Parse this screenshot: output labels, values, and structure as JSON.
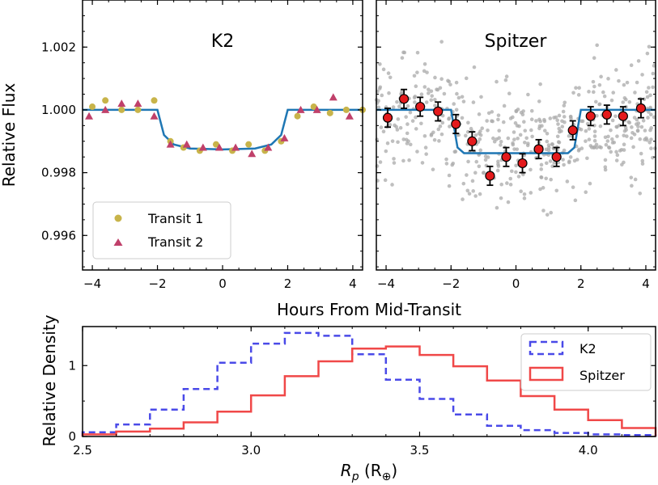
{
  "chart_data": [
    {
      "type": "scatter",
      "title": "K2",
      "xlabel": "Hours From Mid-Transit",
      "ylabel": "Relative Flux",
      "xlim": [
        -4.3,
        4.3
      ],
      "ylim": [
        0.9949,
        1.0035
      ],
      "xticks": [
        "-4",
        "-2",
        "0",
        "2",
        "4"
      ],
      "yticks": [
        "0.996",
        "0.998",
        "1.000",
        "1.002"
      ],
      "series": [
        {
          "name": "Transit 1",
          "color": "#c8b44a",
          "marker": "circle",
          "x": [
            -4.0,
            -3.6,
            -3.1,
            -2.6,
            -2.1,
            -1.6,
            -1.2,
            -0.7,
            -0.2,
            0.3,
            0.8,
            1.3,
            1.8,
            2.3,
            2.8,
            3.3,
            3.8,
            4.3
          ],
          "y": [
            1.0001,
            1.0003,
            1.0,
            1.0,
            1.0003,
            0.999,
            0.9988,
            0.9987,
            0.9989,
            0.9987,
            0.9989,
            0.9987,
            0.999,
            0.9998,
            1.0001,
            0.9999,
            1.0,
            1.0
          ]
        },
        {
          "name": "Transit 2",
          "color": "#c0406a",
          "marker": "triangle",
          "x": [
            -4.1,
            -3.6,
            -3.1,
            -2.6,
            -2.1,
            -1.6,
            -1.1,
            -0.6,
            -0.1,
            0.4,
            0.9,
            1.4,
            1.9,
            2.4,
            2.9,
            3.4,
            3.9
          ],
          "y": [
            0.9998,
            1.0,
            1.0002,
            1.0002,
            0.9998,
            0.9989,
            0.9989,
            0.9988,
            0.9988,
            0.9988,
            0.9986,
            0.9988,
            0.9991,
            1.0,
            1.0,
            1.0004,
            0.9998
          ]
        }
      ],
      "model": {
        "color": "#1f77b4",
        "x": [
          -4.3,
          -2.0,
          -1.8,
          -1.5,
          -1.0,
          0.0,
          1.0,
          1.5,
          1.8,
          2.0,
          4.3
        ],
        "y": [
          1.0,
          1.0,
          0.9992,
          0.9989,
          0.99877,
          0.99874,
          0.99877,
          0.9989,
          0.9992,
          1.0,
          1.0
        ]
      }
    },
    {
      "type": "scatter",
      "title": "Spitzer",
      "xlabel": "Hours From Mid-Transit",
      "xlim": [
        -4.3,
        4.3
      ],
      "ylim": [
        0.9949,
        1.0035
      ],
      "xticks": [
        "-4",
        "-2",
        "0",
        "2",
        "4"
      ],
      "scatter_cloud": {
        "color": "#a9a9a9",
        "count": 520,
        "x_range": [
          -4.3,
          4.3
        ],
        "y_center": 0.9994,
        "y_spread": 0.0016
      },
      "binned": {
        "color": "#e41a1c",
        "x": [
          -3.95,
          -3.45,
          -2.95,
          -2.4,
          -1.85,
          -1.35,
          -0.8,
          -0.3,
          0.2,
          0.7,
          1.25,
          1.75,
          2.3,
          2.8,
          3.3,
          3.85
        ],
        "y": [
          0.99975,
          1.00035,
          1.0001,
          0.99995,
          0.99955,
          0.999,
          0.9979,
          0.9985,
          0.9983,
          0.99875,
          0.9985,
          0.99935,
          0.9998,
          0.99985,
          0.9998,
          1.00005
        ],
        "err": [
          0.0003,
          0.0003,
          0.0003,
          0.0003,
          0.0003,
          0.0003,
          0.0003,
          0.0003,
          0.0003,
          0.0003,
          0.0003,
          0.0003,
          0.0003,
          0.0003,
          0.0003,
          0.0003
        ]
      },
      "model": {
        "color": "#1f77b4",
        "x": [
          -4.3,
          -2.0,
          -1.8,
          -1.6,
          1.6,
          1.8,
          2.0,
          4.3
        ],
        "y": [
          1.0,
          1.0,
          0.9988,
          0.99862,
          0.99862,
          0.9988,
          1.0,
          1.0
        ]
      }
    },
    {
      "type": "histogram",
      "xlabel": "R_p (R_⊕)",
      "ylabel": "Relative Density",
      "xlim": [
        2.5,
        4.2
      ],
      "ylim": [
        0,
        1.55
      ],
      "xticks": [
        "2.5",
        "3.0",
        "3.5",
        "4.0"
      ],
      "yticks": [
        "0",
        "1"
      ],
      "legend_position": "top-right",
      "bin_edges": [
        2.5,
        2.6,
        2.7,
        2.8,
        2.9,
        3.0,
        3.1,
        3.2,
        3.3,
        3.4,
        3.5,
        3.6,
        3.7,
        3.8,
        3.9,
        4.0,
        4.1,
        4.2
      ],
      "series": [
        {
          "name": "K2",
          "color": "#4a4ae8",
          "style": "dashed",
          "values": [
            0.06,
            0.17,
            0.38,
            0.67,
            1.04,
            1.31,
            1.46,
            1.42,
            1.16,
            0.8,
            0.53,
            0.31,
            0.15,
            0.09,
            0.05,
            0.03,
            0.02
          ]
        },
        {
          "name": "Spitzer",
          "color": "#f04848",
          "style": "solid",
          "values": [
            0.03,
            0.07,
            0.11,
            0.2,
            0.35,
            0.58,
            0.85,
            1.06,
            1.24,
            1.27,
            1.15,
            0.99,
            0.79,
            0.57,
            0.38,
            0.23,
            0.12
          ]
        }
      ]
    }
  ],
  "legend_k2": {
    "transit1": "Transit 1",
    "transit2": "Transit 2"
  },
  "legend_hist": {
    "k2": "K2",
    "spitzer": "Spitzer"
  },
  "labels": {
    "flux_ylabel": "Relative Flux",
    "time_xlabel": "Hours From Mid-Transit",
    "density_ylabel": "Relative Density",
    "radius_xlabel_main": "R",
    "radius_xlabel_sub": "p",
    "radius_xlabel_unit_open": " (R",
    "radius_xlabel_unit_sub": "⊕",
    "radius_xlabel_unit_close": ")"
  }
}
